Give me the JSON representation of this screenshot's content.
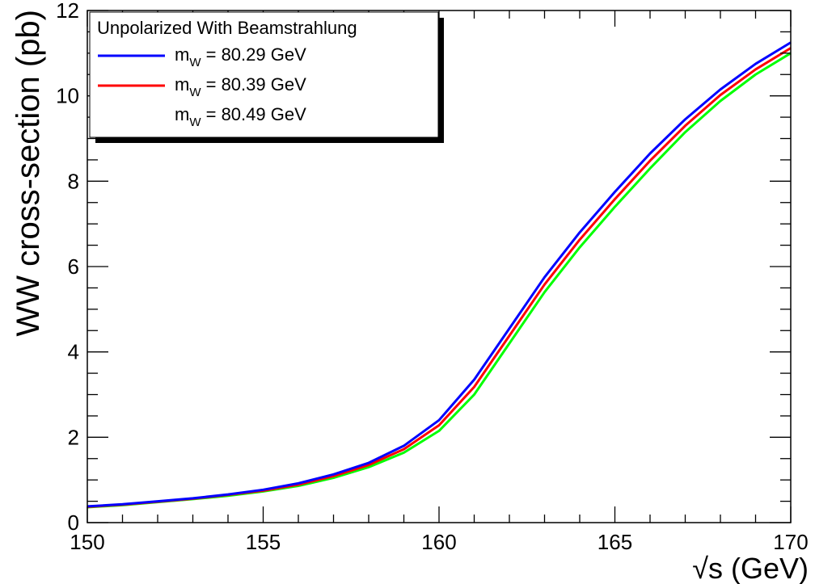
{
  "chart_data": {
    "type": "line",
    "title": "",
    "xlabel": "√s (GeV)",
    "ylabel": "WW cross-section (pb)",
    "xlim": [
      150,
      170
    ],
    "ylim": [
      0,
      12
    ],
    "x_ticks": [
      "150",
      "155",
      "160",
      "165",
      "170"
    ],
    "y_ticks": [
      "0",
      "2",
      "4",
      "6",
      "8",
      "10",
      "12"
    ],
    "grid": false,
    "legend": {
      "placement": "top-left",
      "header": "Unpolarized With Beamstrahlung",
      "entries": [
        {
          "prefix": "m",
          "sub": "W",
          "suffix": " = 80.29 GeV",
          "color": "#0000ff",
          "show_line": true
        },
        {
          "prefix": "m",
          "sub": "W",
          "suffix": " = 80.39 GeV",
          "color": "#ff0000",
          "show_line": true
        },
        {
          "prefix": "m",
          "sub": "W",
          "suffix": " = 80.49 GeV",
          "color": "#00ff00",
          "show_line": false
        }
      ]
    },
    "x": [
      150,
      151,
      152,
      153,
      154,
      155,
      156,
      157,
      158,
      159,
      160,
      161,
      162,
      163,
      164,
      165,
      166,
      167,
      168,
      169,
      170
    ],
    "series": [
      {
        "color": "#0000ff",
        "values": [
          0.38,
          0.43,
          0.5,
          0.57,
          0.66,
          0.77,
          0.92,
          1.13,
          1.4,
          1.8,
          2.4,
          3.35,
          4.55,
          5.75,
          6.8,
          7.75,
          8.65,
          9.45,
          10.15,
          10.75,
          11.25
        ]
      },
      {
        "color": "#ff0000",
        "values": [
          0.37,
          0.42,
          0.49,
          0.56,
          0.65,
          0.75,
          0.89,
          1.09,
          1.35,
          1.72,
          2.28,
          3.18,
          4.38,
          5.58,
          6.63,
          7.58,
          8.48,
          9.3,
          10.02,
          10.62,
          11.12
        ]
      },
      {
        "color": "#00ff00",
        "values": [
          0.36,
          0.41,
          0.48,
          0.55,
          0.63,
          0.73,
          0.86,
          1.05,
          1.3,
          1.64,
          2.15,
          3.0,
          4.2,
          5.4,
          6.45,
          7.4,
          8.3,
          9.15,
          9.88,
          10.5,
          11.0
        ]
      }
    ]
  }
}
